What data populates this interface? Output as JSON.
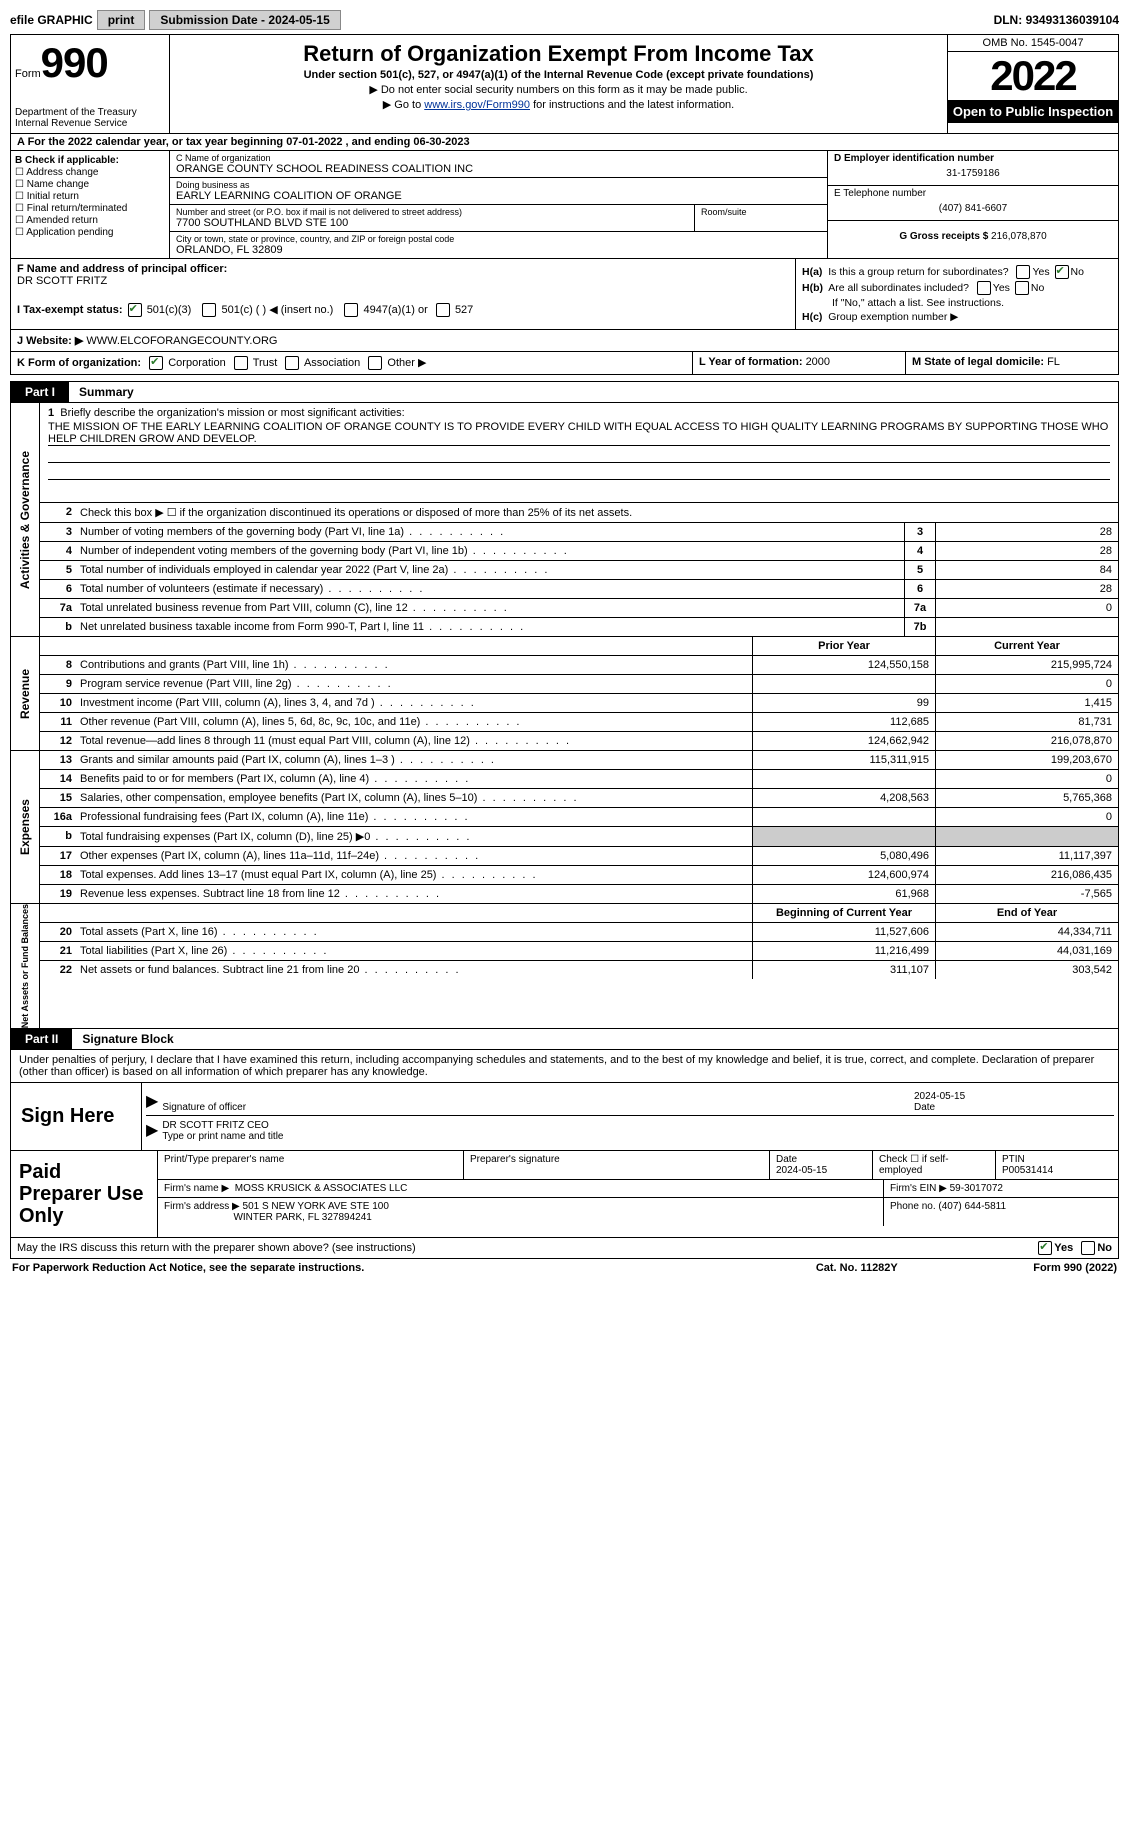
{
  "topbar": {
    "efile": "efile GRAPHIC",
    "print": "print",
    "subdate_label": "Submission Date - ",
    "subdate": "2024-05-15",
    "dln_label": "DLN: ",
    "dln": "93493136039104"
  },
  "header": {
    "form_word": "Form",
    "form_num": "990",
    "dept": "Department of the Treasury Internal Revenue Service",
    "title": "Return of Organization Exempt From Income Tax",
    "subtitle": "Under section 501(c), 527, or 4947(a)(1) of the Internal Revenue Code (except private foundations)",
    "instr1": "▶ Do not enter social security numbers on this form as it may be made public.",
    "instr2_pre": "▶ Go to ",
    "instr2_link": "www.irs.gov/Form990",
    "instr2_post": " for instructions and the latest information.",
    "omb": "OMB No. 1545-0047",
    "year": "2022",
    "open": "Open to Public Inspection"
  },
  "taxyear": "A For the 2022 calendar year, or tax year beginning 07-01-2022   , and ending 06-30-2023",
  "colB": {
    "head": "B Check if applicable:",
    "items": [
      "Address change",
      "Name change",
      "Initial return",
      "Final return/terminated",
      "Amended return",
      "Application pending"
    ]
  },
  "colC": {
    "name_lbl": "C Name of organization",
    "name": "ORANGE COUNTY SCHOOL READINESS COALITION INC",
    "dba_lbl": "Doing business as",
    "dba": "EARLY LEARNING COALITION OF ORANGE",
    "street_lbl": "Number and street (or P.O. box if mail is not delivered to street address)",
    "street": "7700 SOUTHLAND BLVD STE 100",
    "room_lbl": "Room/suite",
    "city_lbl": "City or town, state or province, country, and ZIP or foreign postal code",
    "city": "ORLANDO, FL  32809"
  },
  "colD": {
    "ein_lbl": "D Employer identification number",
    "ein": "31-1759186",
    "tel_lbl": "E Telephone number",
    "tel": "(407) 841-6607",
    "gross_lbl": "G Gross receipts $",
    "gross": "216,078,870"
  },
  "rowF": {
    "lbl": "F Name and address of principal officer:",
    "name": "DR SCOTT FRITZ"
  },
  "rowH": {
    "a": "Is this a group return for subordinates?",
    "b": "Are all subordinates included?",
    "b_note": "If \"No,\" attach a list. See instructions.",
    "c": "Group exemption number ▶",
    "yes": "Yes",
    "no": "No"
  },
  "rowI": {
    "lbl": "I    Tax-exempt status:",
    "opts": [
      "501(c)(3)",
      "501(c) (  ) ◀ (insert no.)",
      "4947(a)(1) or",
      "527"
    ]
  },
  "rowJ": {
    "lbl": "J    Website: ▶  ",
    "val": "WWW.ELCOFORANGECOUNTY.ORG"
  },
  "rowK": {
    "lbl": "K Form of organization:",
    "opts": [
      "Corporation",
      "Trust",
      "Association",
      "Other ▶"
    ],
    "L_lbl": "L Year of formation: ",
    "L_val": "2000",
    "M_lbl": "M State of legal domicile: ",
    "M_val": "FL"
  },
  "part1": {
    "tab": "Part I",
    "title": "Summary"
  },
  "mission": {
    "num": "1",
    "lbl": "Briefly describe the organization's mission or most significant activities:",
    "text": "THE MISSION OF THE EARLY LEARNING COALITION OF ORANGE COUNTY IS TO PROVIDE EVERY CHILD WITH EQUAL ACCESS TO HIGH QUALITY LEARNING PROGRAMS BY SUPPORTING THOSE WHO HELP CHILDREN GROW AND DEVELOP."
  },
  "act_lines": [
    {
      "n": "2",
      "desc": "Check this box ▶ ☐ if the organization discontinued its operations or disposed of more than 25% of its net assets."
    },
    {
      "n": "3",
      "desc": "Number of voting members of the governing body (Part VI, line 1a)",
      "box": "3",
      "val": "28"
    },
    {
      "n": "4",
      "desc": "Number of independent voting members of the governing body (Part VI, line 1b)",
      "box": "4",
      "val": "28"
    },
    {
      "n": "5",
      "desc": "Total number of individuals employed in calendar year 2022 (Part V, line 2a)",
      "box": "5",
      "val": "84"
    },
    {
      "n": "6",
      "desc": "Total number of volunteers (estimate if necessary)",
      "box": "6",
      "val": "28"
    },
    {
      "n": "7a",
      "desc": "Total unrelated business revenue from Part VIII, column (C), line 12",
      "box": "7a",
      "val": "0"
    },
    {
      "n": "b",
      "desc": "Net unrelated business taxable income from Form 990-T, Part I, line 11",
      "box": "7b",
      "val": ""
    }
  ],
  "rev_head": {
    "prior": "Prior Year",
    "current": "Current Year"
  },
  "rev_lines": [
    {
      "n": "8",
      "desc": "Contributions and grants (Part VIII, line 1h)",
      "p": "124,550,158",
      "c": "215,995,724"
    },
    {
      "n": "9",
      "desc": "Program service revenue (Part VIII, line 2g)",
      "p": "",
      "c": "0"
    },
    {
      "n": "10",
      "desc": "Investment income (Part VIII, column (A), lines 3, 4, and 7d )",
      "p": "99",
      "c": "1,415"
    },
    {
      "n": "11",
      "desc": "Other revenue (Part VIII, column (A), lines 5, 6d, 8c, 9c, 10c, and 11e)",
      "p": "112,685",
      "c": "81,731"
    },
    {
      "n": "12",
      "desc": "Total revenue—add lines 8 through 11 (must equal Part VIII, column (A), line 12)",
      "p": "124,662,942",
      "c": "216,078,870"
    }
  ],
  "exp_lines": [
    {
      "n": "13",
      "desc": "Grants and similar amounts paid (Part IX, column (A), lines 1–3 )",
      "p": "115,311,915",
      "c": "199,203,670"
    },
    {
      "n": "14",
      "desc": "Benefits paid to or for members (Part IX, column (A), line 4)",
      "p": "",
      "c": "0"
    },
    {
      "n": "15",
      "desc": "Salaries, other compensation, employee benefits (Part IX, column (A), lines 5–10)",
      "p": "4,208,563",
      "c": "5,765,368"
    },
    {
      "n": "16a",
      "desc": "Professional fundraising fees (Part IX, column (A), line 11e)",
      "p": "",
      "c": "0"
    },
    {
      "n": "b",
      "desc": "Total fundraising expenses (Part IX, column (D), line 25) ▶0",
      "p": "grey",
      "c": "grey"
    },
    {
      "n": "17",
      "desc": "Other expenses (Part IX, column (A), lines 11a–11d, 11f–24e)",
      "p": "5,080,496",
      "c": "11,117,397"
    },
    {
      "n": "18",
      "desc": "Total expenses. Add lines 13–17 (must equal Part IX, column (A), line 25)",
      "p": "124,600,974",
      "c": "216,086,435"
    },
    {
      "n": "19",
      "desc": "Revenue less expenses. Subtract line 18 from line 12",
      "p": "61,968",
      "c": "-7,565"
    }
  ],
  "na_head": {
    "prior": "Beginning of Current Year",
    "current": "End of Year"
  },
  "na_lines": [
    {
      "n": "20",
      "desc": "Total assets (Part X, line 16)",
      "p": "11,527,606",
      "c": "44,334,711"
    },
    {
      "n": "21",
      "desc": "Total liabilities (Part X, line 26)",
      "p": "11,216,499",
      "c": "44,031,169"
    },
    {
      "n": "22",
      "desc": "Net assets or fund balances. Subtract line 21 from line 20",
      "p": "311,107",
      "c": "303,542"
    }
  ],
  "vtabs": {
    "act": "Activities & Governance",
    "rev": "Revenue",
    "exp": "Expenses",
    "na": "Net Assets or Fund Balances"
  },
  "part2": {
    "tab": "Part II",
    "title": "Signature Block"
  },
  "sig_decl": "Under penalties of perjury, I declare that I have examined this return, including accompanying schedules and statements, and to the best of my knowledge and belief, it is true, correct, and complete. Declaration of preparer (other than officer) is based on all information of which preparer has any knowledge.",
  "sign": {
    "label": "Sign Here",
    "sig_lbl": "Signature of officer",
    "date_lbl": "Date",
    "date": "2024-05-15",
    "name": "DR SCOTT FRITZ  CEO",
    "name_lbl": "Type or print name and title"
  },
  "prep": {
    "label": "Paid Preparer Use Only",
    "r1": {
      "name_lbl": "Print/Type preparer's name",
      "sig_lbl": "Preparer's signature",
      "date_lbl": "Date",
      "date": "2024-05-15",
      "check_lbl": "Check ☐ if self-employed",
      "ptin_lbl": "PTIN",
      "ptin": "P00531414"
    },
    "r2": {
      "firm_lbl": "Firm's name    ▶",
      "firm": "MOSS KRUSICK & ASSOCIATES LLC",
      "ein_lbl": "Firm's EIN ▶",
      "ein": "59-3017072"
    },
    "r3": {
      "addr_lbl": "Firm's address ▶",
      "addr1": "501 S NEW YORK AVE STE 100",
      "addr2": "WINTER PARK, FL  327894241",
      "phone_lbl": "Phone no.",
      "phone": "(407) 644-5811"
    }
  },
  "discuss": {
    "q": "May the IRS discuss this return with the preparer shown above? (see instructions)",
    "yes": "Yes",
    "no": "No"
  },
  "footer": {
    "left": "For Paperwork Reduction Act Notice, see the separate instructions.",
    "mid": "Cat. No. 11282Y",
    "right": "Form 990 (2022)"
  }
}
